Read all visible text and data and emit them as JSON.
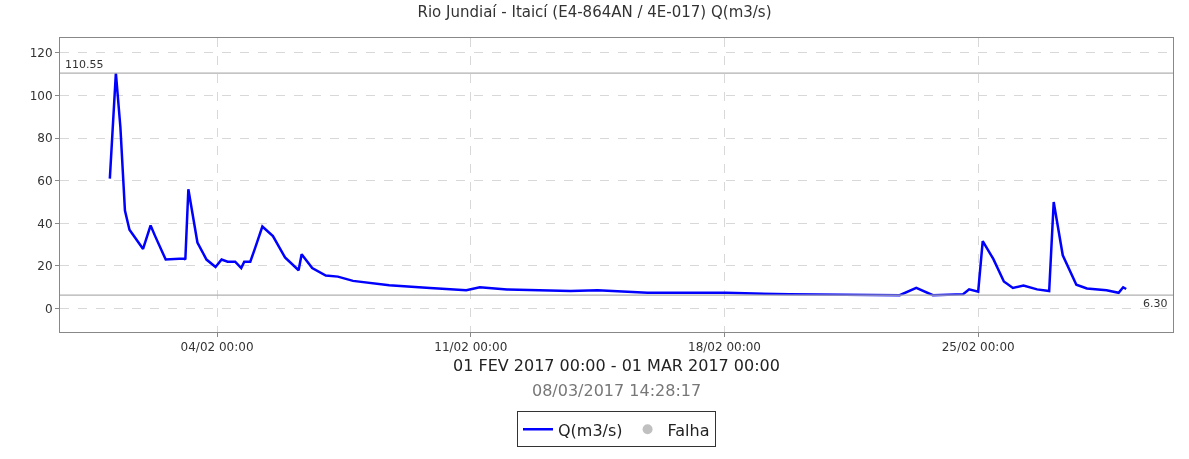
{
  "chart_data": {
    "type": "line",
    "title": "Rio Jundiaí - Itaicí (E4-864AN / 4E-017) Q(m3/s)",
    "xlabel": "01 FEV 2017 00:00 - 01 MAR 2017 00:00",
    "annotations": [
      "08/03/2017 14:28:17"
    ],
    "xlim": [
      "2017-01-30T16:00",
      "2017-03-02T09:00"
    ],
    "xticks": [
      {
        "value": "2017-02-04",
        "label": "04/02 00:00"
      },
      {
        "value": "2017-02-11",
        "label": "11/02 00:00"
      },
      {
        "value": "2017-02-18",
        "label": "18/02 00:00"
      },
      {
        "value": "2017-02-25",
        "label": "25/02 00:00"
      }
    ],
    "ylim": [
      -11,
      127
    ],
    "yticks": [
      0,
      20,
      40,
      60,
      80,
      100,
      120
    ],
    "grid": true,
    "legend": "bottom",
    "ref_lines": [
      {
        "axis": "y",
        "value": 110.55,
        "label": "110.55",
        "color": "#b0b0b0"
      },
      {
        "axis": "y",
        "value": 6.3,
        "label": "6.30",
        "color": "#b0b0b0"
      }
    ],
    "series": [
      {
        "name": "Q(m3/s)",
        "marker": "none",
        "color": "#0000ff",
        "x": [
          "2017-02-01T01:00",
          "2017-02-01T05:00",
          "2017-02-01T08:00",
          "2017-02-01T11:00",
          "2017-02-01T14:00",
          "2017-02-01T18:00",
          "2017-02-01T23:00",
          "2017-02-02T04:00",
          "2017-02-02T07:00",
          "2017-02-02T14:00",
          "2017-02-03T02:00",
          "2017-02-03T03:00",
          "2017-02-03T05:00",
          "2017-02-03T11:00",
          "2017-02-03T17:00",
          "2017-02-03T23:00",
          "2017-02-04T03:00",
          "2017-02-04T07:00",
          "2017-02-04T12:00",
          "2017-02-04T16:00",
          "2017-02-04T18:00",
          "2017-02-04T22:00",
          "2017-02-05T01:00",
          "2017-02-05T06:00",
          "2017-02-05T13:00",
          "2017-02-05T21:00",
          "2017-02-06T06:00",
          "2017-02-06T08:00",
          "2017-02-06T15:00",
          "2017-02-07T00:00",
          "2017-02-07T08:00",
          "2017-02-07T18:00",
          "2017-02-08T18:00",
          "2017-02-09T21:00",
          "2017-02-10T21:00",
          "2017-02-11T06:00",
          "2017-02-12T00:00",
          "2017-02-13T18:00",
          "2017-02-14T12:00",
          "2017-02-15T21:00",
          "2017-02-17T08:00",
          "2017-02-18T01:00",
          "2017-02-19T19:00",
          "2017-02-22T20:00",
          "2017-02-23T07:00",
          "2017-02-23T18:00",
          "2017-02-24T14:00",
          "2017-02-24T18:00",
          "2017-02-25T00:00",
          "2017-02-25T03:00",
          "2017-02-25T10:00",
          "2017-02-25T17:00",
          "2017-02-25T23:00",
          "2017-02-26T06:00",
          "2017-02-26T15:00",
          "2017-02-26T23:00",
          "2017-02-27T02:00",
          "2017-02-27T08:00",
          "2017-02-27T17:00",
          "2017-02-28T00:00",
          "2017-02-28T13:00",
          "2017-02-28T21:00",
          "2017-03-01T00:00",
          "2017-03-01T02:00"
        ],
        "values": [
          61,
          110.55,
          85,
          46,
          37,
          33,
          28,
          39,
          34,
          23,
          23.5,
          23,
          56,
          31,
          23,
          19.5,
          23,
          22,
          22,
          19,
          22,
          22,
          28,
          38.5,
          34,
          24,
          18,
          25.5,
          19,
          15.5,
          15,
          13,
          11,
          9.7,
          8.6,
          10,
          9,
          8.2,
          8.6,
          7.4,
          7.4,
          7.4,
          6.7,
          6.3,
          9.7,
          6.3,
          6.7,
          9,
          7.9,
          31.7,
          23.3,
          12.7,
          9.7,
          10.8,
          9,
          8.2,
          50,
          25,
          11.2,
          9.4,
          8.6,
          7.4,
          10,
          9.2
        ]
      },
      {
        "name": "Falha",
        "type": "scatter",
        "marker": "circle",
        "color": "#c0c0c0"
      }
    ]
  }
}
